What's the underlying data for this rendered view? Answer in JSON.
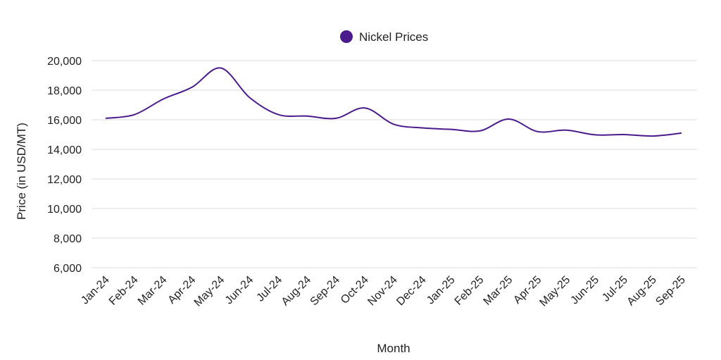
{
  "chart_data": {
    "type": "line",
    "title": "",
    "xlabel": "Month",
    "ylabel": "Price (in USD/MT)",
    "categories": [
      "Jan-24",
      "Feb-24",
      "Mar-24",
      "Apr-24",
      "May-24",
      "Jun-24",
      "Jul-24",
      "Aug-24",
      "Sep-24",
      "Oct-24",
      "Nov-24",
      "Dec-24",
      "Jan-25",
      "Feb-25",
      "Mar-25",
      "Apr-25",
      "May-25",
      "Jun-25",
      "Jul-25",
      "Aug-25",
      "Sep-25"
    ],
    "series": [
      {
        "name": "Nickel Prices",
        "color": "#4b1a8c",
        "values": [
          16100,
          16350,
          17400,
          18200,
          19500,
          17500,
          16350,
          16250,
          16100,
          16800,
          15700,
          15450,
          15350,
          15250,
          16050,
          15200,
          15300,
          14980,
          15000,
          14900,
          15100
        ]
      }
    ],
    "ylim": [
      6000,
      20000
    ],
    "yticks": [
      6000,
      8000,
      10000,
      12000,
      14000,
      16000,
      18000,
      20000
    ],
    "ytick_labels": [
      "6,000",
      "8,000",
      "10,000",
      "12,000",
      "14,000",
      "16,000",
      "18,000",
      "20,000"
    ],
    "grid": true,
    "legend_position": "top-center"
  }
}
